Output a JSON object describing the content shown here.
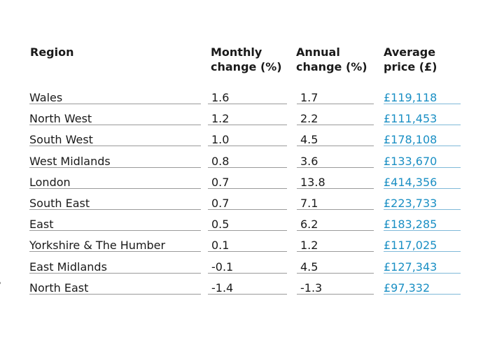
{
  "chart_data": {
    "type": "table",
    "columns": [
      {
        "key": "region",
        "label_lines": [
          "Region"
        ]
      },
      {
        "key": "monthly",
        "label_lines": [
          "Monthly",
          "change (%)"
        ]
      },
      {
        "key": "annual",
        "label_lines": [
          "Annual",
          "change (%)"
        ]
      },
      {
        "key": "price",
        "label_lines": [
          "Average",
          "price (£)"
        ]
      }
    ],
    "rows": [
      {
        "region": "Wales",
        "monthly": "1.6",
        "annual": "1.7",
        "price": "£119,118"
      },
      {
        "region": "North West",
        "monthly": "1.2",
        "annual": "2.2",
        "price": "£111,453"
      },
      {
        "region": "South West",
        "monthly": "1.0",
        "annual": "4.5",
        "price": "£178,108"
      },
      {
        "region": "West Midlands",
        "monthly": "0.8",
        "annual": "3.6",
        "price": "£133,670"
      },
      {
        "region": "London",
        "monthly": "0.7",
        "annual": "13.8",
        "price": "£414,356"
      },
      {
        "region": "South East",
        "monthly": "0.7",
        "annual": "7.1",
        "price": "£223,733"
      },
      {
        "region": "East",
        "monthly": "0.5",
        "annual": "6.2",
        "price": "£183,285"
      },
      {
        "region": "Yorkshire & The Humber",
        "monthly": "0.1",
        "annual": "1.2",
        "price": "£117,025"
      },
      {
        "region": "East Midlands",
        "monthly": "-0.1",
        "annual": "4.5",
        "price": "£127,343"
      },
      {
        "region": "North East",
        "monthly": "-1.4",
        "annual": "-1.3",
        "price": "£97,332"
      }
    ]
  },
  "colors": {
    "text": "#1a1a1a",
    "price_text": "#1a8fc4",
    "rule": "#9a9a9a",
    "price_rule": "#7fb9d8"
  }
}
